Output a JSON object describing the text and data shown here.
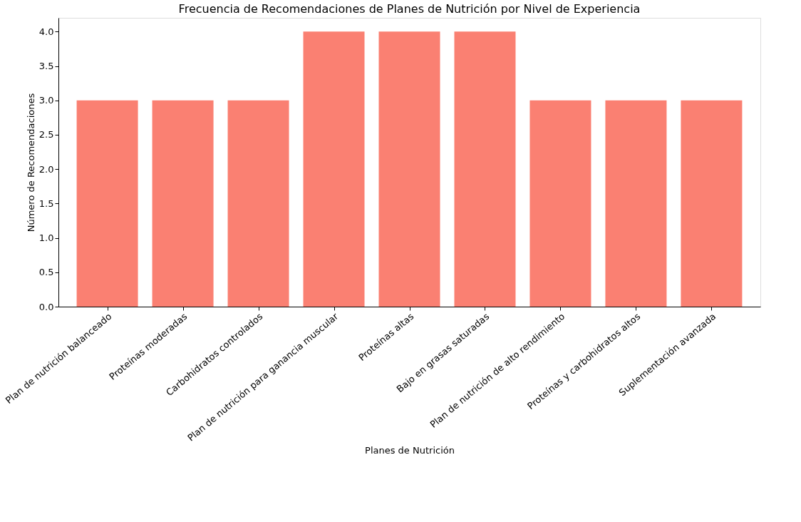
{
  "chart_data": {
    "type": "bar",
    "title": "Frecuencia de Recomendaciones de Planes de Nutrición por Nivel de Experiencia",
    "xlabel": "Planes de Nutrición",
    "ylabel": "Número de Recomendaciones",
    "categories": [
      "Plan de nutrición balanceado",
      "Proteínas moderadas",
      "Carbohidratos controlados",
      "Plan de nutrición para ganancia muscular",
      "Proteínas altas",
      "Bajo en grasas saturadas",
      "Plan de nutrición de alto rendimiento",
      "Proteínas y carbohidratos altos",
      "Suplementación avanzada"
    ],
    "values": [
      3,
      3,
      3,
      4,
      4,
      4,
      3,
      3,
      3
    ],
    "color": "#fa8072",
    "ylim": [
      0,
      4.2
    ],
    "yticks": [
      {
        "value": 0,
        "label": "0.0"
      },
      {
        "value": 0.5,
        "label": "0.5"
      },
      {
        "value": 1,
        "label": "1.0"
      },
      {
        "value": 1.5,
        "label": "1.5"
      },
      {
        "value": 2,
        "label": "2.0"
      },
      {
        "value": 2.5,
        "label": "2.5"
      },
      {
        "value": 3,
        "label": "3.0"
      },
      {
        "value": 3.5,
        "label": "3.5"
      },
      {
        "value": 4,
        "label": "4.0"
      }
    ],
    "grid": false
  }
}
